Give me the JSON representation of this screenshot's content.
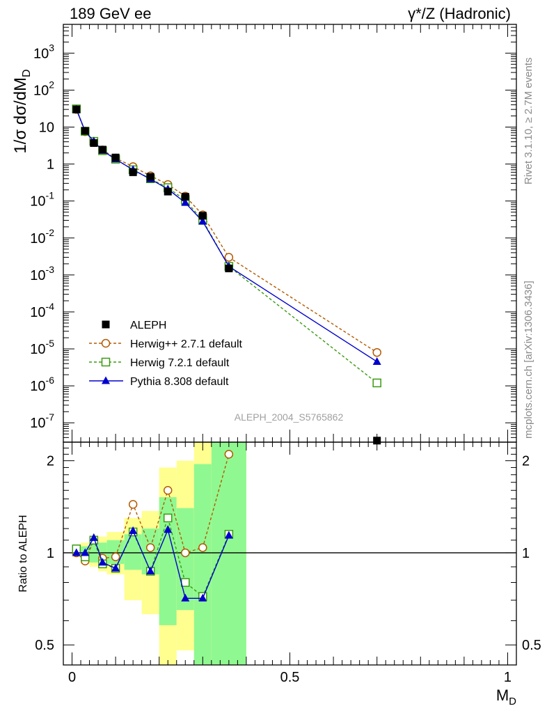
{
  "header": {
    "left": "189 GeV ee",
    "right": "γ*/Z (Hadronic)"
  },
  "side_labels": {
    "rivet": "Rivet 3.1.10, ≥ 2.7M events",
    "mcplots": "mcplots.cern.ch [arXiv:1306.3436]"
  },
  "watermark": "ALEPH_2004_S5765862",
  "chart_data": [
    {
      "type": "line",
      "title": "",
      "ylabel": "1/σ  dσ/dM_D",
      "yscale": "log",
      "xlim": [
        -0.02,
        1.02
      ],
      "ylim": [
        3e-08,
        6000
      ],
      "yticks": [
        {
          "label": "10",
          "exp": "-7",
          "value": 1e-07
        },
        {
          "label": "10",
          "exp": "-6",
          "value": 1e-06
        },
        {
          "label": "10",
          "exp": "-5",
          "value": 1e-05
        },
        {
          "label": "10",
          "exp": "-4",
          "value": 0.0001
        },
        {
          "label": "10",
          "exp": "-3",
          "value": 0.001
        },
        {
          "label": "10",
          "exp": "-2",
          "value": 0.01
        },
        {
          "label": "10",
          "exp": "-1",
          "value": 0.1
        },
        {
          "label": "1",
          "exp": "",
          "value": 1
        },
        {
          "label": "10",
          "exp": "",
          "value": 10
        },
        {
          "label": "10",
          "exp": "2",
          "value": 100
        },
        {
          "label": "10",
          "exp": "3",
          "value": 1000
        }
      ],
      "legend_position": "bottom-left",
      "series": [
        {
          "name": "ALEPH",
          "marker": "square-filled",
          "color": "#000000",
          "x": [
            0.01,
            0.03,
            0.05,
            0.07,
            0.1,
            0.14,
            0.18,
            0.22,
            0.26,
            0.3,
            0.36,
            0.7
          ],
          "y": [
            30,
            7.9,
            3.7,
            2.45,
            1.5,
            0.6,
            0.45,
            0.18,
            0.13,
            0.04,
            0.0015,
            3.3e-08
          ]
        },
        {
          "name": "Herwig++ 2.7.1 default",
          "marker": "circle-open",
          "color": "#b35900",
          "dash": true,
          "x": [
            0.01,
            0.03,
            0.05,
            0.07,
            0.1,
            0.14,
            0.18,
            0.22,
            0.26,
            0.3,
            0.36,
            0.7
          ],
          "y": [
            30,
            7.5,
            4.1,
            2.4,
            1.45,
            0.85,
            0.48,
            0.28,
            0.135,
            0.042,
            0.003,
            8e-06
          ]
        },
        {
          "name": "Herwig 7.2.1 default",
          "marker": "square-open",
          "color": "#3a9a10",
          "dash": true,
          "x": [
            0.01,
            0.03,
            0.05,
            0.07,
            0.1,
            0.14,
            0.18,
            0.22,
            0.26,
            0.3,
            0.36,
            0.7
          ],
          "y": [
            31,
            7.7,
            4.1,
            2.3,
            1.35,
            0.7,
            0.4,
            0.23,
            0.105,
            0.03,
            0.0017,
            1.2e-06
          ]
        },
        {
          "name": "Pythia 8.308 default",
          "marker": "triangle-filled",
          "color": "#0000cc",
          "dash": false,
          "x": [
            0.01,
            0.03,
            0.05,
            0.07,
            0.1,
            0.14,
            0.18,
            0.22,
            0.26,
            0.3,
            0.36,
            0.7
          ],
          "y": [
            30,
            7.8,
            4.1,
            2.3,
            1.35,
            0.7,
            0.39,
            0.21,
            0.09,
            0.028,
            0.0017,
            4.5e-06
          ]
        }
      ]
    },
    {
      "type": "line",
      "xlabel": "M_D",
      "ylabel": "Ratio to ALEPH",
      "yscale": "log",
      "xlim": [
        -0.02,
        1.02
      ],
      "ylim": [
        0.43,
        2.3
      ],
      "yticks": [
        0.5,
        1,
        2
      ],
      "xticks": [
        0,
        0.5,
        1
      ],
      "reference_line": 1,
      "bands": [
        {
          "x0": 0.0,
          "x1": 0.02,
          "outer": [
            0.97,
            1.03
          ],
          "inner": [
            0.98,
            1.02
          ]
        },
        {
          "x0": 0.02,
          "x1": 0.04,
          "outer": [
            0.92,
            1.08
          ],
          "inner": [
            0.95,
            1.05
          ]
        },
        {
          "x0": 0.04,
          "x1": 0.06,
          "outer": [
            0.9,
            1.1
          ],
          "inner": [
            0.93,
            1.07
          ]
        },
        {
          "x0": 0.06,
          "x1": 0.08,
          "outer": [
            0.87,
            1.13
          ],
          "inner": [
            0.92,
            1.08
          ]
        },
        {
          "x0": 0.08,
          "x1": 0.12,
          "outer": [
            0.85,
            1.17
          ],
          "inner": [
            0.92,
            1.1
          ]
        },
        {
          "x0": 0.12,
          "x1": 0.16,
          "outer": [
            0.7,
            1.3
          ],
          "inner": [
            0.88,
            1.15
          ]
        },
        {
          "x0": 0.16,
          "x1": 0.2,
          "outer": [
            0.63,
            1.37
          ],
          "inner": [
            0.85,
            1.2
          ]
        },
        {
          "x0": 0.2,
          "x1": 0.24,
          "outer": [
            0.4,
            1.9
          ],
          "inner": [
            0.58,
            1.52
          ]
        },
        {
          "x0": 0.24,
          "x1": 0.28,
          "outer": [
            0.48,
            2.0
          ],
          "inner": [
            0.65,
            1.4
          ]
        },
        {
          "x0": 0.28,
          "x1": 0.32,
          "outer": [
            0.4,
            2.3
          ],
          "inner": [
            0.4,
            1.95
          ]
        },
        {
          "x0": 0.32,
          "x1": 0.4,
          "outer": [
            0.4,
            2.3
          ],
          "inner": [
            0.4,
            2.3
          ]
        }
      ],
      "band_colors": {
        "outer": "#ffff90",
        "inner": "#90f890"
      },
      "series": [
        {
          "name": "Herwig++ 2.7.1 default",
          "color": "#b35900",
          "marker": "circle-open",
          "dash": true,
          "x": [
            0.01,
            0.03,
            0.05,
            0.07,
            0.1,
            0.14,
            0.18,
            0.22,
            0.26,
            0.3,
            0.36
          ],
          "y": [
            1.0,
            0.94,
            1.1,
            0.96,
            0.97,
            1.44,
            1.04,
            1.6,
            1.0,
            1.04,
            2.1
          ]
        },
        {
          "name": "Herwig 7.2.1 default",
          "color": "#3a9a10",
          "marker": "square-open",
          "dash": true,
          "x": [
            0.01,
            0.03,
            0.05,
            0.07,
            0.1,
            0.14,
            0.18,
            0.22,
            0.26,
            0.3,
            0.36
          ],
          "y": [
            1.03,
            0.97,
            1.1,
            0.92,
            0.89,
            1.17,
            0.87,
            1.3,
            0.8,
            0.72,
            1.15
          ]
        },
        {
          "name": "Pythia 8.308 default",
          "color": "#0000cc",
          "marker": "triangle-filled",
          "dash": false,
          "x": [
            0.01,
            0.03,
            0.05,
            0.07,
            0.1,
            0.14,
            0.18,
            0.22,
            0.26,
            0.3,
            0.36
          ],
          "y": [
            1.0,
            1.0,
            1.12,
            0.93,
            0.89,
            1.18,
            0.87,
            1.19,
            0.71,
            0.71,
            1.14
          ]
        }
      ]
    }
  ]
}
